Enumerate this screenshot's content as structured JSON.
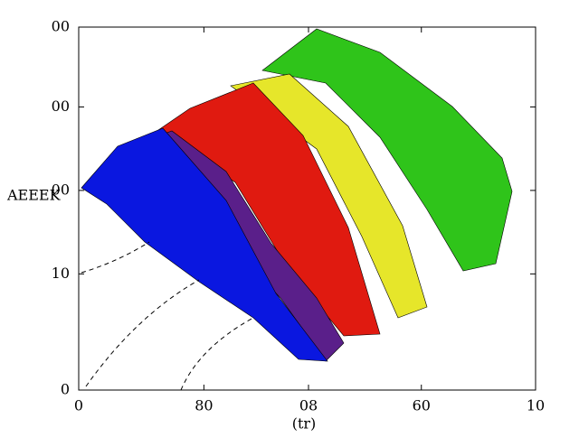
{
  "chart_data": {
    "type": "surface",
    "ylabel": "AEEEK",
    "xlabel": "(tr)",
    "xlim": [
      0,
      100
    ],
    "xticks": [
      0,
      {
        "value": 27.4,
        "label": "80"
      },
      {
        "value": 50.3,
        "label": "08"
      },
      {
        "value": 75,
        "label": "60"
      },
      {
        "value": 100,
        "label": "10"
      }
    ],
    "ylim": [
      0,
      100
    ],
    "yticks": [
      0,
      {
        "value": 32,
        "label": "10"
      },
      {
        "value": 55,
        "label": "00"
      },
      {
        "value": 78,
        "label": "00"
      },
      {
        "value": 100,
        "label": "00"
      }
    ]
  }
}
